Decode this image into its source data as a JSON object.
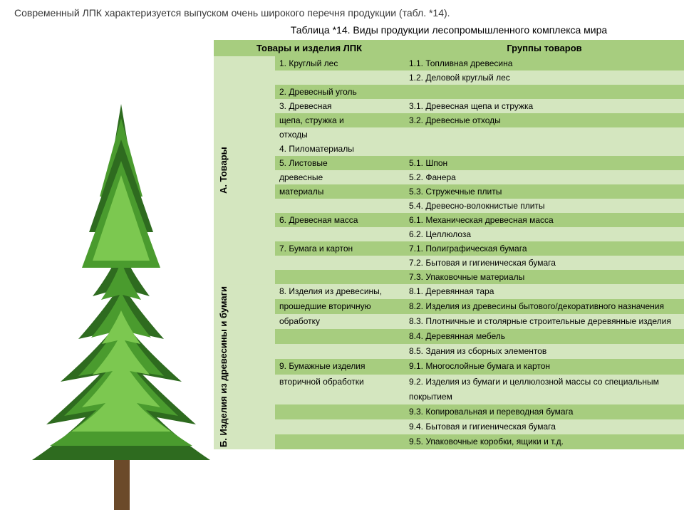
{
  "intro_text": "Современный ЛПК характеризуется выпуском очень широкого перечня продукции (табл. *14).",
  "table_caption": "Таблица *14. Виды продукции лесопромышленного комплекса мира",
  "headers": {
    "col1": "Товары и изделия ЛПК",
    "col2": "Группы товаров"
  },
  "section_a": {
    "label": "А. Товары",
    "rows": [
      {
        "left": "1. Круглый лес",
        "right": "1.1. Топливная древесина",
        "shade": "dark"
      },
      {
        "left": "",
        "right": "1.2. Деловой круглый лес",
        "shade": "light"
      },
      {
        "left": "2. Древесный уголь",
        "right": "",
        "shade": "dark"
      },
      {
        "left": "3. Древесная",
        "right": "3.1. Древесная щепа и стружка",
        "shade": "light"
      },
      {
        "left": "щепа, стружка и",
        "right": "3.2. Древесные отходы",
        "shade": "dark"
      },
      {
        "left": "отходы",
        "right": "",
        "shade": "light"
      },
      {
        "left": "4. Пиломатериалы",
        "right": "",
        "shade": "light"
      },
      {
        "left": "5. Листовые",
        "right": "5.1. Шпон",
        "shade": "dark"
      },
      {
        "left": "древесные",
        "right": "5.2. Фанера",
        "shade": "light"
      },
      {
        "left": "материалы",
        "right": "5.3. Стружечные плиты",
        "shade": "dark"
      },
      {
        "left": "",
        "right": "5.4. Древесно-волокнистые плиты",
        "shade": "light"
      },
      {
        "left": "6. Древесная масса",
        "right": "6.1. Механическая древесная масса",
        "shade": "dark"
      },
      {
        "left": "",
        "right": "6.2. Целлюлоза",
        "shade": "light"
      },
      {
        "left": "7. Бумага и картон",
        "right": "7.1. Полиграфическая бумага",
        "shade": "dark"
      },
      {
        "left": "",
        "right": "7.2. Бытовая и гигиеническая бумага",
        "shade": "light"
      },
      {
        "left": "",
        "right": "7.3. Упаковочные материалы",
        "shade": "dark"
      }
    ]
  },
  "section_b": {
    "label": "Б. Изделия из древесины и бумаги",
    "rows": [
      {
        "left": "8. Изделия из древесины,",
        "right": "8.1. Деревянная тара",
        "shade": "light"
      },
      {
        "left": "прошедшие вторичную",
        "right": "8.2. Изделия из древесины бытового/декоративного назначения",
        "shade": "dark"
      },
      {
        "left": "обработку",
        "right": "8.3. Плотничные и столярные строительные деревянные изделия",
        "shade": "light"
      },
      {
        "left": "",
        "right": "8.4. Деревянная мебель",
        "shade": "dark"
      },
      {
        "left": "",
        "right": "8.5. Здания из сборных элементов",
        "shade": "light"
      },
      {
        "left": "9. Бумажные изделия",
        "right": "9.1. Многослойные бумага и картон",
        "shade": "dark"
      },
      {
        "left": "вторичной обработки",
        "right": "9.2. Изделия из бумаги и целлюлозной массы со специальным",
        "shade": "light"
      },
      {
        "left": "",
        "right": "покрытием",
        "shade": "light"
      },
      {
        "left": "",
        "right": "9.3. Копировальная и переводная бумага",
        "shade": "dark"
      },
      {
        "left": "",
        "right": "9.4. Бытовая и гигиеническая бумага",
        "shade": "light"
      },
      {
        "left": "",
        "right": "9.5. Упаковочные коробки, ящики и т.д.",
        "shade": "dark"
      }
    ]
  },
  "colors": {
    "header_bg": "#a7cd7f",
    "row_dark": "#a7cd7f",
    "row_light": "#d4e6bf",
    "tree_dark": "#2e6b1f",
    "tree_mid": "#4a9b2e",
    "tree_light": "#7cc850",
    "trunk": "#6b4a2a"
  }
}
